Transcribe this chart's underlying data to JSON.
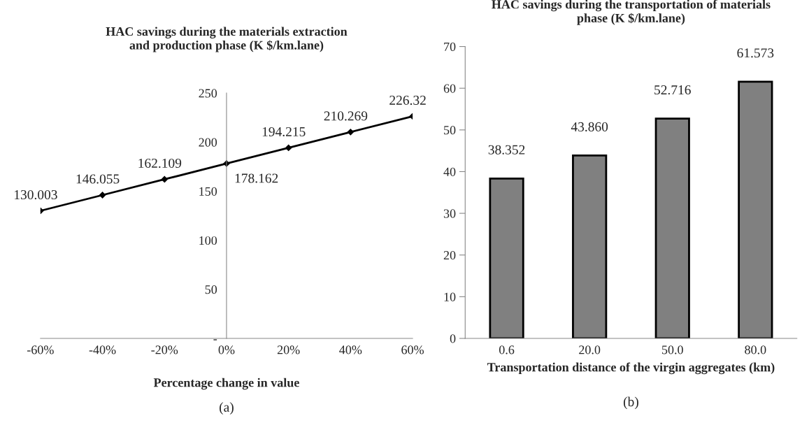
{
  "chart_data": [
    {
      "type": "line",
      "title": "HAC savings during the materials extraction\nand production phase (K $/km.lane)",
      "xlabel": "Percentage change in value",
      "annotations": [
        "(a)"
      ],
      "x": [
        -60,
        -40,
        -20,
        0,
        20,
        40,
        60
      ],
      "series": [
        {
          "color": "#000000",
          "values": [
            130.003,
            146.055,
            162.109,
            178.162,
            194.215,
            210.269,
            226.32
          ]
        }
      ],
      "xlim": [
        -60,
        60
      ],
      "xticks": [
        {
          "value": -60,
          "label": "-60%"
        },
        {
          "value": -40,
          "label": "-40%"
        },
        {
          "value": -20,
          "label": "-20%"
        },
        {
          "value": 0,
          "label": "0%"
        },
        {
          "value": 20,
          "label": "20%"
        },
        {
          "value": 40,
          "label": "40%"
        },
        {
          "value": 60,
          "label": "60%"
        }
      ],
      "ylim": [
        0,
        250
      ],
      "yticks": [
        {
          "value": 0,
          "label": "-"
        },
        50,
        100,
        150,
        200,
        250
      ],
      "marker": "diamond",
      "line_style": "solid",
      "data_labels": true,
      "grid": false,
      "legend": false
    },
    {
      "type": "bar",
      "title": "HAC savings during the transportation of materials\nphase (K $/km.lane)",
      "xlabel": "Transportation distance of the virgin aggregates (km)",
      "annotations": [
        "(b)"
      ],
      "categories": [
        "0.6",
        "20.0",
        "50.0",
        "80.0"
      ],
      "series": [
        {
          "color": "#808080",
          "values": [
            38.352,
            43.86,
            52.716,
            61.573
          ]
        }
      ],
      "value_labels": [
        "38.352",
        "43.860",
        "52.716",
        "61.573"
      ],
      "ylim": [
        0,
        70
      ],
      "yticks": [
        0,
        10,
        20,
        30,
        40,
        50,
        60,
        70
      ],
      "grid": false,
      "legend": false
    }
  ]
}
